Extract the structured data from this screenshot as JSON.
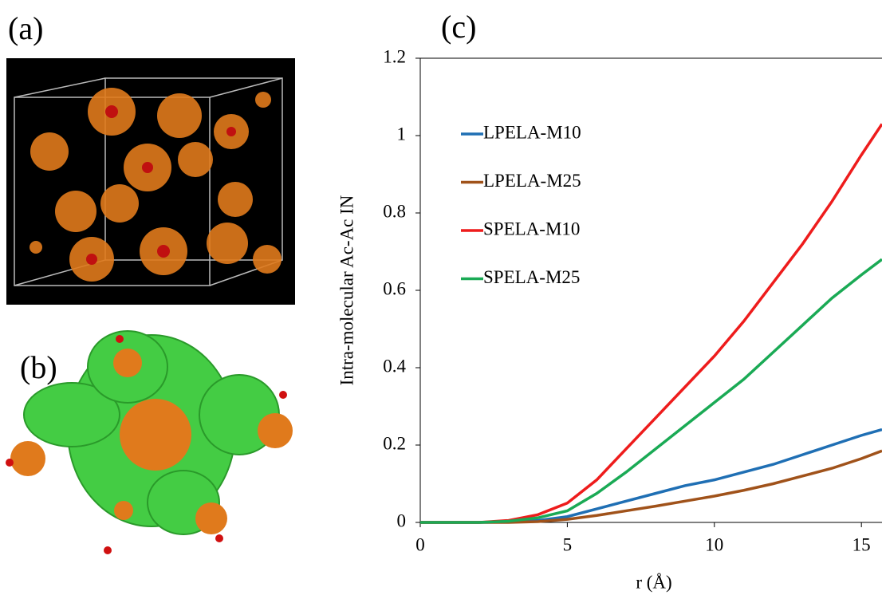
{
  "panels": [
    "(a)",
    "(b)",
    "(c)"
  ],
  "chart_data": {
    "type": "line",
    "xlabel": "r (Å)",
    "ylabel": "Intra-molecular  Ac-Ac  IN",
    "x": [
      0,
      1,
      2,
      3,
      4,
      5,
      6,
      7,
      8,
      9,
      10,
      11,
      12,
      13,
      14,
      15,
      15.7
    ],
    "series": [
      {
        "name": "LPELA-M10",
        "color": "#1f6fb4",
        "values": [
          0,
          0,
          0,
          0.001,
          0.005,
          0.015,
          0.035,
          0.055,
          0.075,
          0.095,
          0.11,
          0.13,
          0.15,
          0.175,
          0.2,
          0.225,
          0.24
        ]
      },
      {
        "name": "LPELA-M25",
        "color": "#a0521a",
        "values": [
          0,
          0,
          0,
          0,
          0.002,
          0.008,
          0.018,
          0.03,
          0.042,
          0.055,
          0.068,
          0.083,
          0.1,
          0.12,
          0.14,
          0.165,
          0.185
        ]
      },
      {
        "name": "SPELA-M10",
        "color": "#ee1c1c",
        "values": [
          0,
          0,
          0,
          0.005,
          0.02,
          0.05,
          0.11,
          0.19,
          0.27,
          0.35,
          0.43,
          0.52,
          0.62,
          0.72,
          0.83,
          0.95,
          1.03
        ]
      },
      {
        "name": "SPELA-M25",
        "color": "#1aaa55",
        "values": [
          0,
          0,
          0,
          0.003,
          0.012,
          0.03,
          0.075,
          0.13,
          0.19,
          0.25,
          0.31,
          0.37,
          0.44,
          0.51,
          0.58,
          0.64,
          0.68
        ]
      }
    ],
    "xlim": [
      0,
      15.7
    ],
    "ylim": [
      0,
      1.2
    ],
    "xticks": [
      0,
      5,
      10,
      15
    ],
    "yticks": [
      0,
      0.2,
      0.4,
      0.6,
      0.8,
      1,
      1.2
    ]
  }
}
